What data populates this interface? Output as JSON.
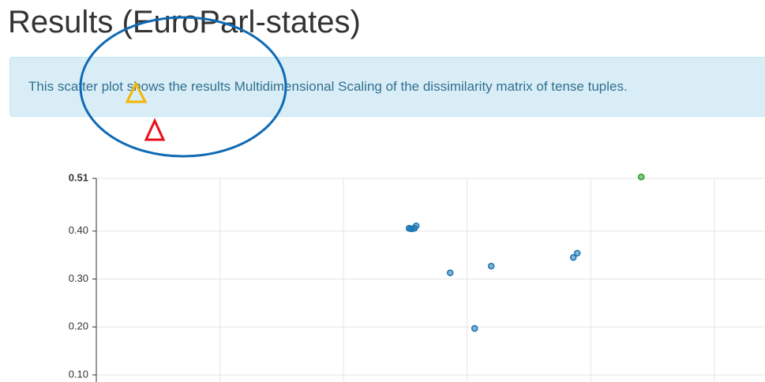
{
  "header": {
    "title": "Results (EuroParl-states)"
  },
  "info": {
    "text": "This scatter plot shows the results Multidimensional Scaling of the dissimilarity matrix of tense tuples."
  },
  "chart_data": {
    "type": "scatter",
    "xlim": [
      0,
      5.41
    ],
    "xgrid": [
      1,
      2,
      3,
      4,
      5
    ],
    "ylim": [
      0.1,
      0.51
    ],
    "yticks": [
      0.51,
      {
        "value": 0.4,
        "label": "0.40"
      },
      {
        "value": 0.3,
        "label": "0.30"
      },
      {
        "value": 0.2,
        "label": "0.20"
      },
      {
        "value": 0.1,
        "label": "0.10"
      }
    ],
    "grid": true,
    "series": [
      {
        "color": "#1f77b4",
        "x": [
          2.556,
          2.575,
          2.588,
          2.543,
          2.53,
          2.863,
          3.195,
          3.061,
          3.859,
          3.891
        ],
        "values": [
          0.405,
          0.406,
          0.411,
          0.405,
          0.406,
          0.313,
          0.327,
          0.197,
          0.345,
          0.354
        ]
      },
      {
        "color": "#2ca02c",
        "x": [
          4.409
        ],
        "values": [
          0.513
        ]
      }
    ]
  }
}
